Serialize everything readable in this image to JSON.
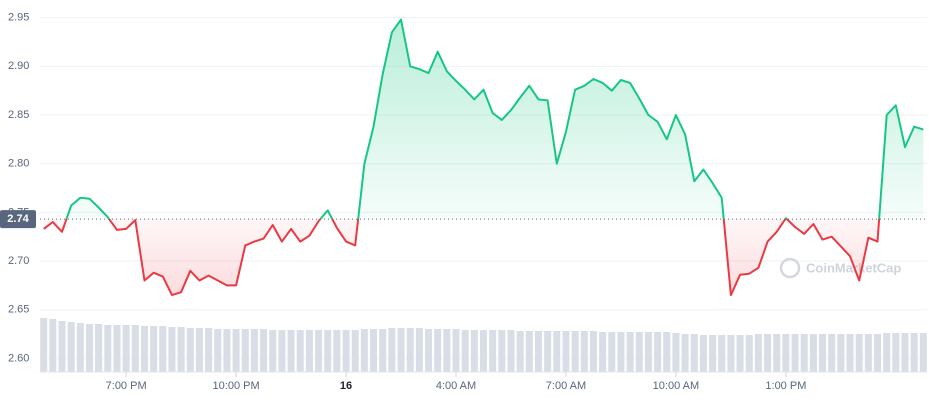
{
  "chart_data": {
    "type": "line",
    "x": [
      16.75,
      17,
      17.25,
      17.5,
      17.75,
      18,
      18.25,
      18.5,
      18.75,
      19,
      19.25,
      19.5,
      19.75,
      20,
      20.25,
      20.5,
      20.75,
      21,
      21.25,
      21.5,
      21.75,
      22,
      22.25,
      22.5,
      22.75,
      23,
      23.25,
      23.5,
      23.75,
      24,
      24.25,
      24.5,
      24.75,
      25,
      25.25,
      25.5,
      25.75,
      26,
      26.25,
      26.5,
      26.75,
      27,
      27.25,
      27.5,
      27.75,
      28,
      28.25,
      28.5,
      28.75,
      29,
      29.25,
      29.5,
      29.75,
      30,
      30.25,
      30.5,
      30.75,
      31,
      31.25,
      31.5,
      31.75,
      32,
      32.25,
      32.5,
      32.75,
      33,
      33.25,
      33.5,
      33.75,
      34,
      34.25,
      34.5,
      34.75,
      35,
      35.25,
      35.5,
      35.75,
      36,
      36.25,
      36.5,
      36.75,
      37,
      37.25,
      37.5,
      37.75,
      38,
      38.25,
      38.5,
      38.75,
      39,
      39.25,
      39.5,
      39.75,
      40,
      40.25,
      40.5,
      40.75
    ],
    "values": [
      2.733,
      2.74,
      2.73,
      2.757,
      2.765,
      2.764,
      2.755,
      2.745,
      2.732,
      2.733,
      2.742,
      2.68,
      2.688,
      2.684,
      2.665,
      2.668,
      2.69,
      2.68,
      2.685,
      2.68,
      2.675,
      2.675,
      2.716,
      2.72,
      2.723,
      2.737,
      2.72,
      2.733,
      2.72,
      2.726,
      2.741,
      2.752,
      2.734,
      2.72,
      2.716,
      2.8,
      2.838,
      2.892,
      2.935,
      2.948,
      2.9,
      2.897,
      2.893,
      2.915,
      2.895,
      2.885,
      2.876,
      2.866,
      2.876,
      2.852,
      2.845,
      2.855,
      2.868,
      2.88,
      2.866,
      2.865,
      2.8,
      2.833,
      2.876,
      2.88,
      2.887,
      2.883,
      2.875,
      2.886,
      2.883,
      2.867,
      2.85,
      2.843,
      2.825,
      2.85,
      2.83,
      2.782,
      2.794,
      2.78,
      2.765,
      2.665,
      2.686,
      2.687,
      2.693,
      2.72,
      2.73,
      2.744,
      2.735,
      2.728,
      2.738,
      2.722,
      2.725,
      2.715,
      2.705,
      2.68,
      2.724,
      2.72,
      2.85,
      2.86,
      2.817,
      2.838,
      2.835
    ],
    "volume": [
      54,
      53,
      51,
      50,
      49,
      48,
      48,
      47,
      47,
      47,
      47,
      46,
      46,
      46,
      45,
      45,
      44,
      44,
      44,
      43,
      43,
      43,
      43,
      43,
      43,
      42,
      42,
      42,
      42,
      42,
      42,
      42,
      42,
      42,
      42,
      43,
      43,
      43,
      44,
      44,
      44,
      44,
      43,
      43,
      43,
      43,
      42,
      42,
      42,
      42,
      42,
      42,
      41,
      41,
      41,
      41,
      41,
      41,
      41,
      41,
      41,
      40,
      40,
      40,
      40,
      40,
      40,
      40,
      40,
      39,
      38,
      38,
      37,
      37,
      37,
      37,
      37,
      37,
      38,
      38,
      38,
      38,
      38,
      38,
      38,
      38,
      38,
      38,
      38,
      38,
      38,
      38,
      39,
      39,
      39,
      39,
      39
    ],
    "volume_color": "#d9dde5",
    "up_color": "#16c784",
    "down_color": "#ea3943",
    "baseline": {
      "value": 2.743,
      "label": "2.74"
    },
    "xlim": [
      16.65,
      40.85
    ],
    "xticks": [
      {
        "value": 19,
        "label": "7:00 PM"
      },
      {
        "value": 22,
        "label": "10:00 PM"
      },
      {
        "value": 25,
        "label": "16"
      },
      {
        "value": 28,
        "label": "4:00 AM"
      },
      {
        "value": 31,
        "label": "7:00 AM"
      },
      {
        "value": 34,
        "label": "10:00 AM"
      },
      {
        "value": 37,
        "label": "1:00 PM"
      }
    ],
    "ylim": [
      2.586,
      2.963
    ],
    "yticks": [
      {
        "value": 2.6,
        "label": "2.60"
      },
      2.65,
      {
        "value": 2.7,
        "label": "2.70"
      },
      2.75,
      {
        "value": 2.8,
        "label": "2.80"
      },
      2.85,
      {
        "value": 2.9,
        "label": "2.90"
      },
      2.95
    ],
    "y2lim": [
      0,
      367
    ],
    "grid": true,
    "watermark": "CoinMarketCap"
  }
}
